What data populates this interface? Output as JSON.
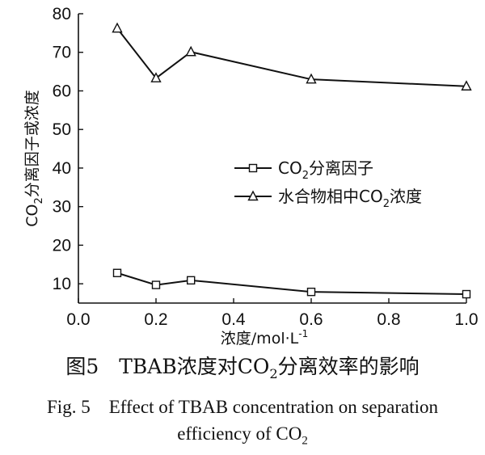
{
  "chart_data": {
    "type": "line",
    "xlabel": "浓度/mol·L",
    "xlabel_sup": "-1",
    "ylabel_parts": [
      "CO",
      "2",
      "分离因子或浓度"
    ],
    "xlim": [
      0.0,
      1.0
    ],
    "ylim": [
      5,
      80
    ],
    "x_ticks": [
      "0.0",
      "0.2",
      "0.4",
      "0.6",
      "0.8",
      "1.0"
    ],
    "y_ticks": [
      "10",
      "20",
      "30",
      "40",
      "50",
      "60",
      "70",
      "80"
    ],
    "legend_position": "center-right",
    "series": [
      {
        "name_parts": [
          "CO",
          "2",
          "分离因子"
        ],
        "marker": "square",
        "x": [
          0.1,
          0.2,
          0.29,
          0.6,
          1.0
        ],
        "y": [
          12.8,
          9.7,
          10.9,
          7.9,
          7.3
        ]
      },
      {
        "name_parts": [
          "水合物相中CO",
          "2",
          "浓度"
        ],
        "marker": "triangle",
        "x": [
          0.1,
          0.2,
          0.29,
          0.6,
          1.0
        ],
        "y": [
          76.2,
          63.3,
          70.1,
          63.0,
          61.2
        ]
      }
    ]
  },
  "caption": {
    "cn_pre": "图5　TBAB浓度对CO",
    "cn_sub": "2",
    "cn_post": "分离效率的影响",
    "en_line1": "Fig. 5　Effect of TBAB concentration on separation",
    "en_line2_pre": "efficiency of CO",
    "en_line2_sub": "2"
  }
}
